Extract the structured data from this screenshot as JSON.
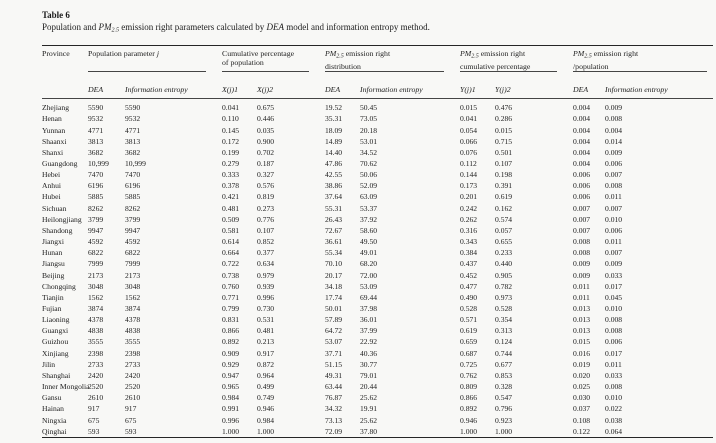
{
  "caption": {
    "label": "Table 6",
    "segments": [
      {
        "text": "Population and "
      },
      {
        "text": "PM",
        "style": "italic"
      },
      {
        "text": "2.5",
        "style": "italic-sub"
      },
      {
        "text": " emission right parameters calculated by "
      },
      {
        "text": "DEA",
        "style": "italic"
      },
      {
        "text": " model and information entropy method."
      }
    ]
  },
  "table": {
    "province_header": "Province",
    "groups": [
      {
        "lines": [
          [
            {
              "text": "Population parameter "
            },
            {
              "text": "j",
              "style": "italic"
            }
          ]
        ]
      },
      {
        "lines": [
          [
            {
              "text": "Cumulative percentage"
            }
          ],
          [
            {
              "text": "of population"
            }
          ]
        ]
      },
      {
        "lines": [
          [
            {
              "text": "PM",
              "style": "italic"
            },
            {
              "text": "2.5",
              "style": "italic-sub"
            },
            {
              "text": " emission right"
            }
          ],
          [
            {
              "text": "distribution"
            }
          ]
        ]
      },
      {
        "lines": [
          [
            {
              "text": "PM",
              "style": "italic"
            },
            {
              "text": "2.5",
              "style": "italic-sub"
            },
            {
              "text": " emission right"
            }
          ],
          [
            {
              "text": "cumulative percentage"
            }
          ]
        ]
      },
      {
        "lines": [
          [
            {
              "text": "PM",
              "style": "italic"
            },
            {
              "text": "2.5",
              "style": "italic-sub"
            },
            {
              "text": " emission right"
            }
          ],
          [
            {
              "text": "/population"
            }
          ]
        ]
      }
    ],
    "subheaders": [
      "DEA",
      "Information entropy",
      "X(j)1",
      "X(j)2",
      "DEA",
      "Information entropy",
      "Y(j)1",
      "Y(j)2",
      "DEA",
      "Information entropy"
    ],
    "rows": [
      [
        "Zhejiang",
        "5590",
        "5590",
        "0.041",
        "0.675",
        "19.52",
        "50.45",
        "0.015",
        "0.476",
        "0.004",
        "0.009"
      ],
      [
        "Henan",
        "9532",
        "9532",
        "0.110",
        "0.446",
        "35.31",
        "73.05",
        "0.041",
        "0.286",
        "0.004",
        "0.008"
      ],
      [
        "Yunnan",
        "4771",
        "4771",
        "0.145",
        "0.035",
        "18.09",
        "20.18",
        "0.054",
        "0.015",
        "0.004",
        "0.004"
      ],
      [
        "Shaanxi",
        "3813",
        "3813",
        "0.172",
        "0.900",
        "14.89",
        "53.01",
        "0.066",
        "0.715",
        "0.004",
        "0.014"
      ],
      [
        "Shanxi",
        "3682",
        "3682",
        "0.199",
        "0.702",
        "14.40",
        "34.52",
        "0.076",
        "0.501",
        "0.004",
        "0.009"
      ],
      [
        "Guangdong",
        "10,999",
        "10,999",
        "0.279",
        "0.187",
        "47.86",
        "70.62",
        "0.112",
        "0.107",
        "0.004",
        "0.006"
      ],
      [
        "Hebei",
        "7470",
        "7470",
        "0.333",
        "0.327",
        "42.55",
        "50.06",
        "0.144",
        "0.198",
        "0.006",
        "0.007"
      ],
      [
        "Anhui",
        "6196",
        "6196",
        "0.378",
        "0.576",
        "38.86",
        "52.09",
        "0.173",
        "0.391",
        "0.006",
        "0.008"
      ],
      [
        "Hubei",
        "5885",
        "5885",
        "0.421",
        "0.819",
        "37.64",
        "63.09",
        "0.201",
        "0.619",
        "0.006",
        "0.011"
      ],
      [
        "Sichuan",
        "8262",
        "8262",
        "0.481",
        "0.273",
        "55.31",
        "53.37",
        "0.242",
        "0.162",
        "0.007",
        "0.007"
      ],
      [
        "Heilongjiang",
        "3799",
        "3799",
        "0.509",
        "0.776",
        "26.43",
        "37.92",
        "0.262",
        "0.574",
        "0.007",
        "0.010"
      ],
      [
        "Shandong",
        "9947",
        "9947",
        "0.581",
        "0.107",
        "72.67",
        "58.60",
        "0.316",
        "0.057",
        "0.007",
        "0.006"
      ],
      [
        "Jiangxi",
        "4592",
        "4592",
        "0.614",
        "0.852",
        "36.61",
        "49.50",
        "0.343",
        "0.655",
        "0.008",
        "0.011"
      ],
      [
        "Hunan",
        "6822",
        "6822",
        "0.664",
        "0.377",
        "55.34",
        "49.01",
        "0.384",
        "0.233",
        "0.008",
        "0.007"
      ],
      [
        "Jiangsu",
        "7999",
        "7999",
        "0.722",
        "0.634",
        "70.10",
        "68.20",
        "0.437",
        "0.440",
        "0.009",
        "0.009"
      ],
      [
        "Beijing",
        "2173",
        "2173",
        "0.738",
        "0.979",
        "20.17",
        "72.00",
        "0.452",
        "0.905",
        "0.009",
        "0.033"
      ],
      [
        "Chongqing",
        "3048",
        "3048",
        "0.760",
        "0.939",
        "34.18",
        "53.09",
        "0.477",
        "0.782",
        "0.011",
        "0.017"
      ],
      [
        "Tianjin",
        "1562",
        "1562",
        "0.771",
        "0.996",
        "17.74",
        "69.44",
        "0.490",
        "0.973",
        "0.011",
        "0.045"
      ],
      [
        "Fujian",
        "3874",
        "3874",
        "0.799",
        "0.730",
        "50.01",
        "37.98",
        "0.528",
        "0.528",
        "0.013",
        "0.010"
      ],
      [
        "Liaoning",
        "4378",
        "4378",
        "0.831",
        "0.531",
        "57.89",
        "36.01",
        "0.571",
        "0.354",
        "0.013",
        "0.008"
      ],
      [
        "Guangxi",
        "4838",
        "4838",
        "0.866",
        "0.481",
        "64.72",
        "37.99",
        "0.619",
        "0.313",
        "0.013",
        "0.008"
      ],
      [
        "Guizhou",
        "3555",
        "3555",
        "0.892",
        "0.213",
        "53.07",
        "22.92",
        "0.659",
        "0.124",
        "0.015",
        "0.006"
      ],
      [
        "Xinjiang",
        "2398",
        "2398",
        "0.909",
        "0.917",
        "37.71",
        "40.36",
        "0.687",
        "0.744",
        "0.016",
        "0.017"
      ],
      [
        "Jilin",
        "2733",
        "2733",
        "0.929",
        "0.872",
        "51.15",
        "30.77",
        "0.725",
        "0.677",
        "0.019",
        "0.011"
      ],
      [
        "Shanghai",
        "2420",
        "2420",
        "0.947",
        "0.964",
        "49.31",
        "79.01",
        "0.762",
        "0.853",
        "0.020",
        "0.033"
      ],
      [
        "Inner Mongolia",
        "2520",
        "2520",
        "0.965",
        "0.499",
        "63.44",
        "20.44",
        "0.809",
        "0.328",
        "0.025",
        "0.008"
      ],
      [
        "Gansu",
        "2610",
        "2610",
        "0.984",
        "0.749",
        "76.87",
        "25.62",
        "0.866",
        "0.547",
        "0.030",
        "0.010"
      ],
      [
        "Hainan",
        "917",
        "917",
        "0.991",
        "0.946",
        "34.32",
        "19.91",
        "0.892",
        "0.796",
        "0.037",
        "0.022"
      ],
      [
        "Ningxia",
        "675",
        "675",
        "0.996",
        "0.984",
        "73.13",
        "25.62",
        "0.946",
        "0.923",
        "0.108",
        "0.038"
      ],
      [
        "Qinghai",
        "593",
        "593",
        "1.000",
        "1.000",
        "72.09",
        "37.80",
        "1.000",
        "1.000",
        "0.122",
        "0.064"
      ]
    ]
  }
}
